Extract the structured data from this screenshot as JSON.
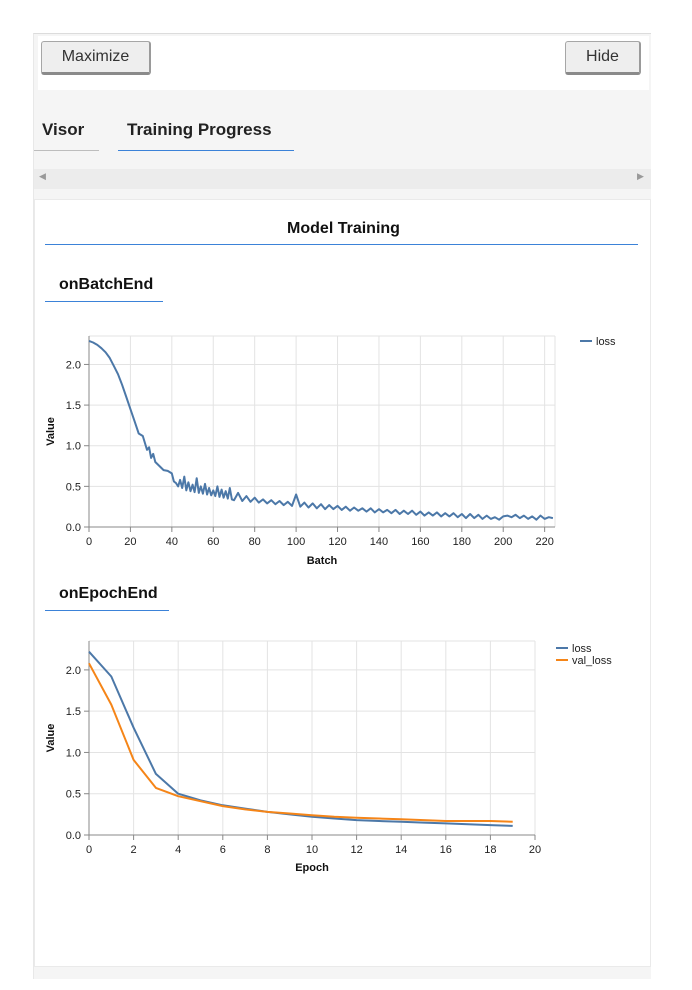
{
  "controls": {
    "maximize_label": "Maximize",
    "hide_label": "Hide"
  },
  "tabs": [
    {
      "label": "Visor"
    },
    {
      "label": "Training Progress"
    }
  ],
  "surface": {
    "title": "Model Training"
  },
  "sections": [
    {
      "title": "onBatchEnd"
    },
    {
      "title": "onEpochEnd"
    }
  ],
  "colors": {
    "accent": "#3b82d8",
    "loss": "#4c78a8",
    "val_loss": "#f58518"
  },
  "chart_data": [
    {
      "type": "line",
      "xlabel": "Batch",
      "ylabel": "Value",
      "xlim": [
        0,
        225
      ],
      "ylim": [
        0,
        2.35
      ],
      "x_ticks": [
        0,
        20,
        40,
        60,
        80,
        100,
        120,
        140,
        160,
        180,
        200,
        220
      ],
      "y_ticks": [
        0.0,
        0.5,
        1.0,
        1.5,
        2.0
      ],
      "y_tick_labels": [
        "0.0",
        "0.5",
        "1.0",
        "1.5",
        "2.0"
      ],
      "grid": true,
      "legend": "top-right",
      "series": [
        {
          "name": "loss",
          "color": "#4c78a8",
          "x": [
            0,
            2,
            4,
            6,
            8,
            10,
            12,
            14,
            16,
            18,
            20,
            22,
            24,
            26,
            28,
            29,
            30,
            31,
            32,
            34,
            36,
            38,
            40,
            41,
            42,
            43,
            44,
            45,
            46,
            47,
            48,
            49,
            50,
            51,
            52,
            53,
            54,
            55,
            56,
            57,
            58,
            59,
            60,
            61,
            62,
            63,
            64,
            65,
            66,
            67,
            68,
            69,
            70,
            72,
            74,
            76,
            78,
            80,
            82,
            84,
            86,
            88,
            90,
            92,
            94,
            96,
            98,
            100,
            102,
            104,
            106,
            108,
            110,
            112,
            114,
            116,
            118,
            120,
            122,
            124,
            126,
            128,
            130,
            132,
            134,
            136,
            138,
            140,
            142,
            144,
            146,
            148,
            150,
            152,
            154,
            156,
            158,
            160,
            162,
            164,
            166,
            168,
            170,
            172,
            174,
            176,
            178,
            180,
            182,
            184,
            186,
            188,
            190,
            192,
            194,
            196,
            198,
            200,
            202,
            204,
            206,
            208,
            210,
            212,
            214,
            216,
            218,
            220,
            222,
            224
          ],
          "values": [
            2.29,
            2.27,
            2.24,
            2.2,
            2.15,
            2.08,
            1.98,
            1.88,
            1.75,
            1.6,
            1.45,
            1.3,
            1.15,
            1.12,
            0.95,
            0.98,
            0.85,
            0.9,
            0.8,
            0.75,
            0.7,
            0.69,
            0.66,
            0.56,
            0.54,
            0.5,
            0.58,
            0.48,
            0.62,
            0.45,
            0.55,
            0.44,
            0.52,
            0.43,
            0.6,
            0.42,
            0.5,
            0.41,
            0.53,
            0.4,
            0.48,
            0.39,
            0.45,
            0.38,
            0.5,
            0.37,
            0.46,
            0.36,
            0.44,
            0.35,
            0.48,
            0.34,
            0.33,
            0.42,
            0.32,
            0.38,
            0.31,
            0.36,
            0.3,
            0.34,
            0.29,
            0.33,
            0.28,
            0.32,
            0.27,
            0.31,
            0.26,
            0.4,
            0.25,
            0.3,
            0.24,
            0.29,
            0.23,
            0.28,
            0.22,
            0.27,
            0.22,
            0.26,
            0.21,
            0.25,
            0.2,
            0.24,
            0.2,
            0.23,
            0.19,
            0.23,
            0.18,
            0.22,
            0.18,
            0.21,
            0.17,
            0.21,
            0.16,
            0.2,
            0.16,
            0.2,
            0.15,
            0.19,
            0.14,
            0.18,
            0.14,
            0.18,
            0.13,
            0.17,
            0.13,
            0.17,
            0.12,
            0.16,
            0.11,
            0.16,
            0.11,
            0.15,
            0.1,
            0.14,
            0.1,
            0.12,
            0.09,
            0.13,
            0.14,
            0.12,
            0.15,
            0.11,
            0.14,
            0.1,
            0.13,
            0.09,
            0.14,
            0.1,
            0.12,
            0.11
          ]
        }
      ]
    },
    {
      "type": "line",
      "xlabel": "Epoch",
      "ylabel": "Value",
      "xlim": [
        0,
        20
      ],
      "ylim": [
        0,
        2.35
      ],
      "x_ticks": [
        0,
        2,
        4,
        6,
        8,
        10,
        12,
        14,
        16,
        18,
        20
      ],
      "y_ticks": [
        0.0,
        0.5,
        1.0,
        1.5,
        2.0
      ],
      "y_tick_labels": [
        "0.0",
        "0.5",
        "1.0",
        "1.5",
        "2.0"
      ],
      "grid": true,
      "legend": "top-right",
      "series": [
        {
          "name": "loss",
          "color": "#4c78a8",
          "x": [
            0,
            1,
            2,
            3,
            4,
            5,
            6,
            7,
            8,
            9,
            10,
            11,
            12,
            13,
            14,
            15,
            16,
            17,
            18,
            19
          ],
          "values": [
            2.22,
            1.92,
            1.3,
            0.74,
            0.5,
            0.42,
            0.36,
            0.32,
            0.28,
            0.25,
            0.22,
            0.2,
            0.18,
            0.17,
            0.16,
            0.15,
            0.14,
            0.13,
            0.12,
            0.11
          ]
        },
        {
          "name": "val_loss",
          "color": "#f58518",
          "x": [
            0,
            1,
            2,
            3,
            4,
            5,
            6,
            7,
            8,
            9,
            10,
            11,
            12,
            13,
            14,
            15,
            16,
            17,
            18,
            19
          ],
          "values": [
            2.08,
            1.58,
            0.91,
            0.57,
            0.47,
            0.41,
            0.35,
            0.31,
            0.28,
            0.26,
            0.24,
            0.22,
            0.21,
            0.2,
            0.19,
            0.18,
            0.17,
            0.17,
            0.17,
            0.16
          ]
        }
      ]
    }
  ]
}
